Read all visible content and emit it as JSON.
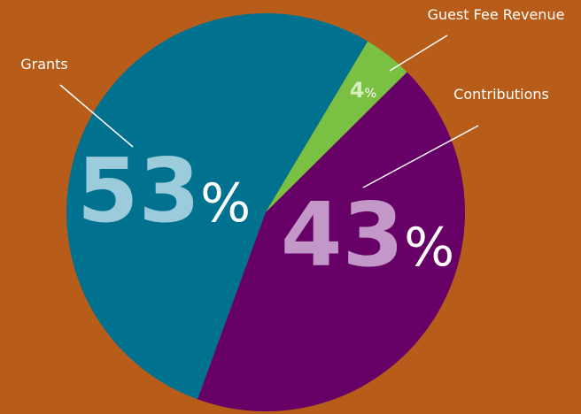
{
  "chart_data": {
    "type": "pie",
    "categories": [
      "Grants",
      "Guest Fee Revenue",
      "Contributions"
    ],
    "values": [
      53,
      4,
      43
    ],
    "value_labels": [
      "53%",
      "4%",
      "43%"
    ],
    "colors": [
      "#00728f",
      "#7ac143",
      "#660066"
    ],
    "label_colors": [
      "#9ccbdb",
      "#d4eebc",
      "#c497c9"
    ]
  }
}
